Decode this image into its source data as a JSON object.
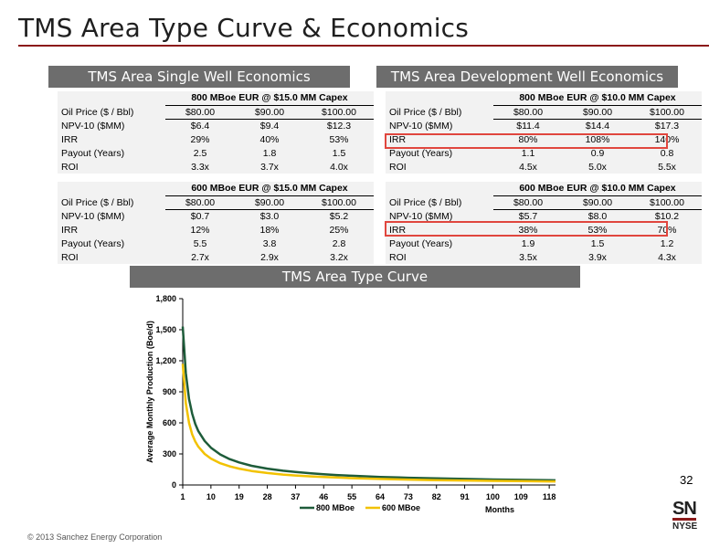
{
  "slide_title": "TMS Area Type Curve & Economics",
  "single_well": {
    "header": "TMS Area Single Well Economics",
    "tables": [
      {
        "caption": "800 MBoe EUR @ $15.0 MM Capex",
        "rows": [
          {
            "label": "Oil Price ($ / Bbl)",
            "values": [
              "$80.00",
              "$90.00",
              "$100.00"
            ]
          },
          {
            "label": "NPV-10 ($MM)",
            "values": [
              "$6.4",
              "$9.4",
              "$12.3"
            ]
          },
          {
            "label": "IRR",
            "values": [
              "29%",
              "40%",
              "53%"
            ]
          },
          {
            "label": "Payout (Years)",
            "values": [
              "2.5",
              "1.8",
              "1.5"
            ]
          },
          {
            "label": "ROI",
            "values": [
              "3.3x",
              "3.7x",
              "4.0x"
            ]
          }
        ]
      },
      {
        "caption": "600 MBoe EUR @ $15.0 MM Capex",
        "rows": [
          {
            "label": "Oil Price ($ / Bbl)",
            "values": [
              "$80.00",
              "$90.00",
              "$100.00"
            ]
          },
          {
            "label": "NPV-10 ($MM)",
            "values": [
              "$0.7",
              "$3.0",
              "$5.2"
            ]
          },
          {
            "label": "IRR",
            "values": [
              "12%",
              "18%",
              "25%"
            ]
          },
          {
            "label": "Payout (Years)",
            "values": [
              "5.5",
              "3.8",
              "2.8"
            ]
          },
          {
            "label": "ROI",
            "values": [
              "2.7x",
              "2.9x",
              "3.2x"
            ]
          }
        ]
      }
    ]
  },
  "development_well": {
    "header": "TMS Area Development Well Economics",
    "tables": [
      {
        "caption": "800 MBoe EUR @ $10.0 MM Capex",
        "rows": [
          {
            "label": "Oil Price ($ / Bbl)",
            "values": [
              "$80.00",
              "$90.00",
              "$100.00"
            ]
          },
          {
            "label": "NPV-10 ($MM)",
            "values": [
              "$11.4",
              "$14.4",
              "$17.3"
            ]
          },
          {
            "label": "IRR",
            "values": [
              "80%",
              "108%",
              "140%"
            ]
          },
          {
            "label": "Payout (Years)",
            "values": [
              "1.1",
              "0.9",
              "0.8"
            ]
          },
          {
            "label": "ROI",
            "values": [
              "4.5x",
              "5.0x",
              "5.5x"
            ]
          }
        ]
      },
      {
        "caption": "600 MBoe EUR @ $10.0 MM Capex",
        "rows": [
          {
            "label": "Oil Price ($ / Bbl)",
            "values": [
              "$80.00",
              "$90.00",
              "$100.00"
            ]
          },
          {
            "label": "NPV-10 ($MM)",
            "values": [
              "$5.7",
              "$8.0",
              "$10.2"
            ]
          },
          {
            "label": "IRR",
            "values": [
              "38%",
              "53%",
              "70%"
            ]
          },
          {
            "label": "Payout (Years)",
            "values": [
              "1.9",
              "1.5",
              "1.2"
            ]
          },
          {
            "label": "ROI",
            "values": [
              "3.5x",
              "3.9x",
              "4.3x"
            ]
          }
        ]
      }
    ]
  },
  "type_curve_header": "TMS Area Type Curve",
  "chart_data": {
    "type": "line",
    "title": "",
    "xlabel": "Months",
    "ylabel": "Average Monthly Production (Boe/d)",
    "ylim": [
      0,
      1800
    ],
    "xlim": [
      1,
      120
    ],
    "y_ticks": [
      "0",
      "300",
      "600",
      "900",
      "1,200",
      "1,500",
      "1,800"
    ],
    "y_tick_values": [
      0,
      300,
      600,
      900,
      1200,
      1500,
      1800
    ],
    "x_ticks": [
      "1",
      "10",
      "19",
      "28",
      "37",
      "46",
      "55",
      "64",
      "73",
      "82",
      "91",
      "100",
      "109",
      "118"
    ],
    "x_tick_values": [
      1,
      10,
      19,
      28,
      37,
      46,
      55,
      64,
      73,
      82,
      91,
      100,
      109,
      118
    ],
    "grid": false,
    "legend_position": "bottom",
    "series": [
      {
        "name": "800 MBoe",
        "color": "#1e5c3a",
        "x": [
          1,
          2,
          3,
          4,
          5,
          6,
          8,
          10,
          13,
          16,
          19,
          23,
          28,
          33,
          37,
          42,
          46,
          50,
          55,
          60,
          64,
          70,
          73,
          80,
          82,
          91,
          100,
          109,
          118,
          120
        ],
        "y": [
          1530,
          1080,
          830,
          690,
          590,
          520,
          425,
          360,
          295,
          250,
          218,
          185,
          158,
          138,
          125,
          112,
          103,
          96,
          89,
          83,
          78,
          73,
          70,
          65,
          64,
          58,
          53,
          49,
          46,
          45
        ]
      },
      {
        "name": "600 MBoe",
        "color": "#f2c200",
        "x": [
          1,
          2,
          3,
          4,
          5,
          6,
          8,
          10,
          13,
          16,
          19,
          23,
          28,
          33,
          37,
          42,
          46,
          50,
          55,
          60,
          64,
          70,
          73,
          80,
          82,
          91,
          100,
          109,
          118,
          120
        ],
        "y": [
          1170,
          790,
          600,
          490,
          420,
          370,
          300,
          255,
          210,
          180,
          158,
          135,
          116,
          101,
          92,
          83,
          77,
          72,
          66,
          62,
          58,
          54,
          52,
          48,
          47,
          43,
          40,
          37,
          34,
          34
        ]
      }
    ]
  },
  "page_number": "32",
  "copyright": "© 2013 Sanchez Energy Corporation",
  "logo": {
    "top": "SN",
    "bottom": "NYSE"
  }
}
